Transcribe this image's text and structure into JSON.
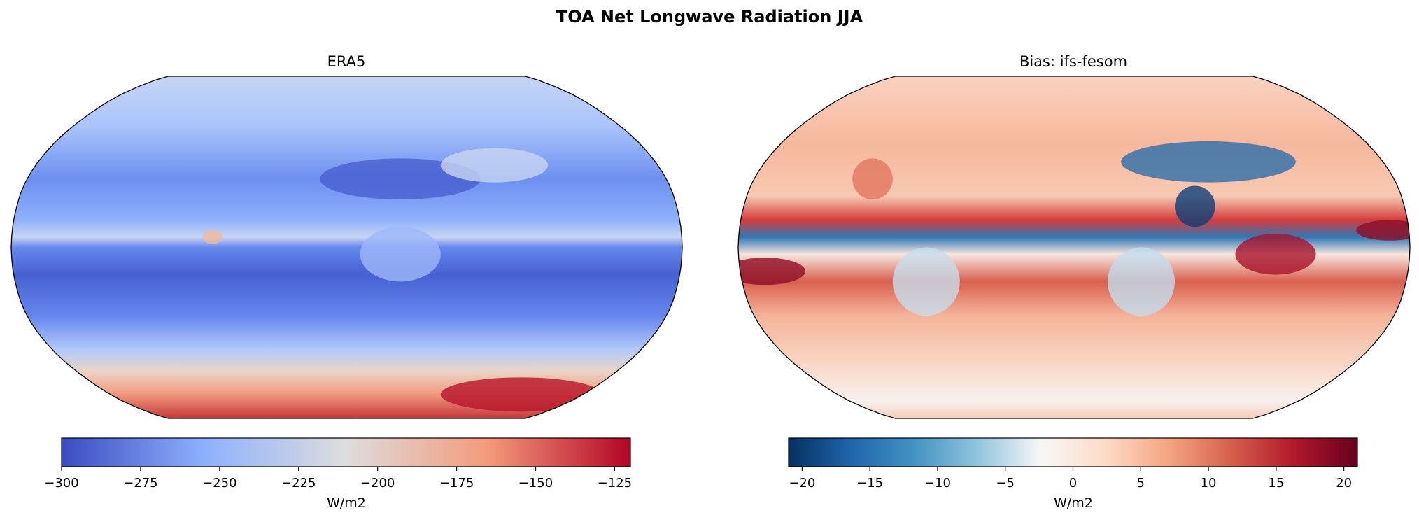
{
  "chart_data": [
    {
      "type": "heatmap",
      "projection": "Robinson",
      "title": "ERA5",
      "suptitle": "TOA Net Longwave Radiation JJA",
      "colormap": "coolwarm",
      "colorbar": {
        "label": "W/m2",
        "range": [
          -300,
          -120
        ],
        "ticks": [
          -300,
          -275,
          -250,
          -225,
          -200,
          -175,
          -150,
          -125
        ],
        "tick_labels": [
          "−300",
          "−275",
          "−250",
          "−225",
          "−200",
          "−175",
          "−150",
          "−125"
        ],
        "colors": [
          "#3b4cc0",
          "#8db0fe",
          "#dddddd",
          "#f49a7b",
          "#b40426"
        ]
      },
      "description_values": {
        "tropics_min": -290,
        "antarctica_max": -120
      }
    },
    {
      "type": "heatmap",
      "projection": "Robinson",
      "title": "Bias: ifs-fesom",
      "colormap": "RdBu_r",
      "colorbar": {
        "label": "W/m2",
        "range": [
          -21,
          21
        ],
        "ticks": [
          -20,
          -15,
          -10,
          -5,
          0,
          5,
          10,
          15,
          20
        ],
        "tick_labels": [
          "−20",
          "−15",
          "−10",
          "−5",
          "0",
          "5",
          "10",
          "15",
          "20"
        ],
        "colors": [
          "#053061",
          "#2166ac",
          "#4393c3",
          "#92c5de",
          "#f7f7f7",
          "#fddbc7",
          "#f4a582",
          "#d6604d",
          "#b2182b",
          "#67001f"
        ]
      }
    }
  ]
}
